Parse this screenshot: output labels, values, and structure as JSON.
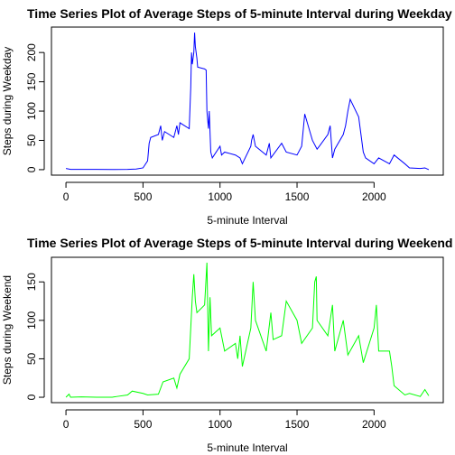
{
  "chart_data": [
    {
      "type": "line",
      "title": "Time Series Plot of Average Steps of 5-minute Interval during Weekday",
      "x_label": "5-minute Interval",
      "y_label": "Steps during Weekday",
      "xlim": [
        -94.2,
        2449.2
      ],
      "ylim": [
        -9.36,
        243.4
      ],
      "xticks": [
        0,
        500,
        1000,
        1500,
        2000
      ],
      "yticks": [
        0,
        50,
        100,
        150,
        200
      ],
      "x": [
        0,
        30,
        100,
        200,
        300,
        400,
        455,
        500,
        530,
        540,
        550,
        600,
        615,
        625,
        640,
        700,
        720,
        730,
        740,
        800,
        810,
        815,
        820,
        830,
        835,
        840,
        850,
        855,
        900,
        910,
        915,
        925,
        930,
        940,
        950,
        1000,
        1010,
        1030,
        1100,
        1130,
        1145,
        1200,
        1205,
        1215,
        1230,
        1300,
        1320,
        1330,
        1400,
        1430,
        1500,
        1530,
        1550,
        1600,
        1630,
        1645,
        1700,
        1715,
        1730,
        1745,
        1800,
        1815,
        1830,
        1845,
        1900,
        1915,
        1930,
        1945,
        2000,
        2030,
        2100,
        2130,
        2200,
        2230,
        2300,
        2330,
        2355
      ],
      "series": [
        {
          "name": "Weekday",
          "color": "#0000ff",
          "values": [
            2,
            0.5,
            0.4,
            0.5,
            0.2,
            0.5,
            1,
            3,
            15,
            45,
            55,
            60,
            75,
            50,
            65,
            55,
            75,
            60,
            80,
            70,
            140,
            200,
            180,
            200,
            234,
            210,
            190,
            175,
            172,
            170,
            100,
            70,
            100,
            30,
            20,
            40,
            25,
            30,
            25,
            20,
            10,
            40,
            50,
            60,
            40,
            25,
            45,
            20,
            45,
            30,
            25,
            40,
            95,
            50,
            35,
            40,
            60,
            75,
            20,
            35,
            60,
            75,
            100,
            120,
            90,
            60,
            30,
            20,
            10,
            20,
            10,
            25,
            10,
            3,
            2,
            3,
            0
          ]
        }
      ]
    },
    {
      "type": "line",
      "title": "Time Series Plot of Average Steps of 5-minute Interval during Weekend",
      "x_label": "5-minute Interval",
      "y_label": "Steps during Weekend",
      "xlim": [
        -94.2,
        2449.2
      ],
      "ylim": [
        -7,
        182
      ],
      "xticks": [
        0,
        500,
        1000,
        1500,
        2000
      ],
      "yticks": [
        0,
        50,
        100,
        150
      ],
      "x": [
        0,
        20,
        30,
        100,
        200,
        300,
        330,
        400,
        430,
        500,
        530,
        600,
        630,
        700,
        720,
        740,
        800,
        810,
        820,
        830,
        840,
        850,
        900,
        915,
        925,
        935,
        945,
        1000,
        1030,
        1100,
        1115,
        1130,
        1145,
        1200,
        1215,
        1230,
        1300,
        1330,
        1345,
        1400,
        1430,
        1500,
        1530,
        1600,
        1615,
        1625,
        1630,
        1700,
        1730,
        1745,
        1800,
        1830,
        1900,
        1930,
        2000,
        2015,
        2030,
        2100,
        2115,
        2130,
        2200,
        2230,
        2300,
        2330,
        2355
      ],
      "series": [
        {
          "name": "Weekend",
          "color": "#00ff00",
          "values": [
            0,
            4,
            0,
            0.5,
            0,
            0,
            1,
            3,
            8,
            5,
            3,
            4,
            20,
            25,
            12,
            30,
            50,
            90,
            130,
            160,
            125,
            110,
            120,
            175,
            60,
            130,
            80,
            90,
            60,
            70,
            50,
            80,
            40,
            90,
            150,
            100,
            60,
            110,
            75,
            80,
            125,
            100,
            70,
            90,
            150,
            157,
            100,
            80,
            120,
            60,
            100,
            55,
            80,
            45,
            90,
            120,
            60,
            60,
            40,
            15,
            3,
            5,
            1,
            10,
            2
          ]
        }
      ]
    }
  ]
}
